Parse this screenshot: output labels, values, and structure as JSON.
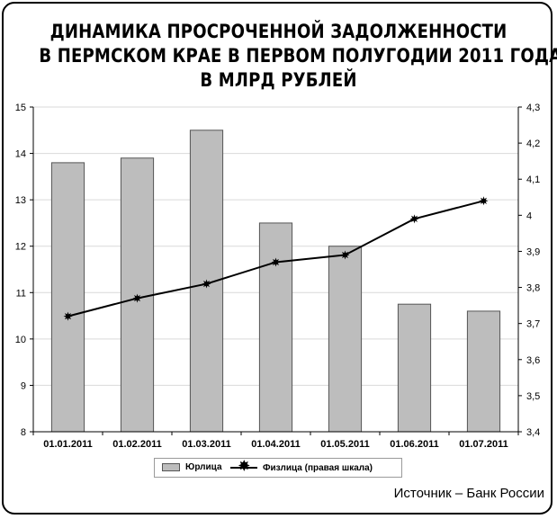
{
  "title_lines": [
    "ДИНАМИКА ПРОСРОЧЕННОЙ ЗАДОЛЖЕННОСТИ",
    "В ПЕРМСКОМ КРАЕ В ПЕРВОМ ПОЛУГОДИИ 2011 ГОДА,",
    "В МЛРД РУБЛЕЙ"
  ],
  "source": "Источник – Банк России",
  "legend": {
    "bars_label": "Юрлица",
    "line_label": "Физлица (правая шкала)"
  },
  "colors": {
    "bar_fill": "#bdbdbd",
    "bar_stroke": "#555555",
    "line": "#000000",
    "grid": "#d9d9d9"
  },
  "chart_data": {
    "type": "bar",
    "categories": [
      "01.01.2011",
      "01.02.2011",
      "01.03.2011",
      "01.04.2011",
      "01.05.2011",
      "01.06.2011",
      "01.07.2011"
    ],
    "series": [
      {
        "name": "Юрлица",
        "type": "bar",
        "axis": "left",
        "values": [
          13.8,
          13.9,
          14.5,
          12.5,
          12.0,
          10.75,
          10.6
        ]
      },
      {
        "name": "Физлица (правая шкала)",
        "type": "line",
        "axis": "right",
        "values": [
          3.72,
          3.77,
          3.81,
          3.87,
          3.89,
          3.99,
          4.04
        ]
      }
    ],
    "ylim_left": [
      8,
      15
    ],
    "yticks_left": [
      "8",
      "9",
      "10",
      "11",
      "12",
      "13",
      "14",
      "15"
    ],
    "ylim_right": [
      3.4,
      4.3
    ],
    "yticks_right": [
      "3,4",
      "3,5",
      "3,6",
      "3,7",
      "3,8",
      "3,9",
      "4",
      "4,1",
      "4,2",
      "4,3"
    ],
    "grid": true,
    "legend_position": "bottom"
  }
}
